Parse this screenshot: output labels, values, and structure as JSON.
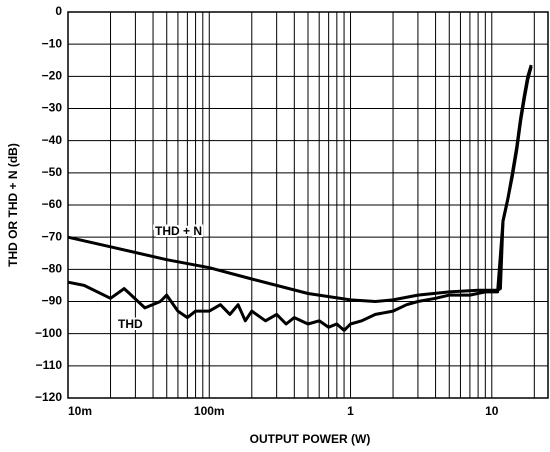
{
  "chart_data": {
    "type": "line",
    "xlabel": "OUTPUT POWER (W)",
    "ylabel": "THD OR THD + N (dB)",
    "xscale": "log",
    "xlim": [
      0.01,
      25
    ],
    "ylim": [
      -120,
      0
    ],
    "xticks": [
      {
        "value": 0.01,
        "label": "10m"
      },
      {
        "value": 0.1,
        "label": "100m"
      },
      1,
      10
    ],
    "yticks": [
      0,
      {
        "value": -10,
        "label": "−10"
      },
      {
        "value": -20,
        "label": "−20"
      },
      {
        "value": -30,
        "label": "−30"
      },
      {
        "value": -40,
        "label": "−40"
      },
      {
        "value": -50,
        "label": "−50"
      },
      {
        "value": -60,
        "label": "−60"
      },
      {
        "value": -70,
        "label": "−70"
      },
      {
        "value": -80,
        "label": "−80"
      },
      {
        "value": -90,
        "label": "−90"
      },
      {
        "value": -100,
        "label": "−100"
      },
      {
        "value": -110,
        "label": "−110"
      },
      {
        "value": -120,
        "label": "−120"
      }
    ],
    "grid": true,
    "series": [
      {
        "name": "THD + N",
        "color": "#000000",
        "x": [
          0.01,
          0.02,
          0.05,
          0.1,
          0.2,
          0.5,
          1,
          1.5,
          2,
          3,
          5,
          8,
          11,
          11.5,
          12,
          13,
          14,
          15,
          16,
          17,
          18,
          19
        ],
        "values": [
          -70,
          -73,
          -77,
          -79.5,
          -83,
          -87.5,
          -89.5,
          -90,
          -89.5,
          -88,
          -87,
          -86.5,
          -86.5,
          -86,
          -65,
          -58,
          -50,
          -42,
          -33,
          -26,
          -20,
          -16.5
        ]
      },
      {
        "name": "THD",
        "color": "#000000",
        "x": [
          0.01,
          0.013,
          0.02,
          0.025,
          0.035,
          0.045,
          0.05,
          0.06,
          0.07,
          0.08,
          0.1,
          0.12,
          0.14,
          0.16,
          0.18,
          0.2,
          0.25,
          0.3,
          0.35,
          0.4,
          0.5,
          0.6,
          0.7,
          0.8,
          0.9,
          1,
          1.2,
          1.5,
          2,
          2.5,
          3,
          4,
          5,
          7,
          9,
          11,
          12,
          13,
          14,
          15,
          16,
          17,
          18,
          19
        ],
        "values": [
          -84,
          -85,
          -89,
          -86,
          -92,
          -90,
          -88,
          -93,
          -95,
          -93,
          -93,
          -91,
          -94,
          -91,
          -96,
          -93,
          -96,
          -94,
          -97,
          -95,
          -97,
          -96,
          -98,
          -97,
          -99,
          -97,
          -96,
          -94,
          -93,
          -91,
          -90,
          -89,
          -88,
          -88,
          -87,
          -87,
          -65,
          -58,
          -51,
          -43,
          -34,
          -27,
          -21,
          -17
        ]
      }
    ]
  }
}
